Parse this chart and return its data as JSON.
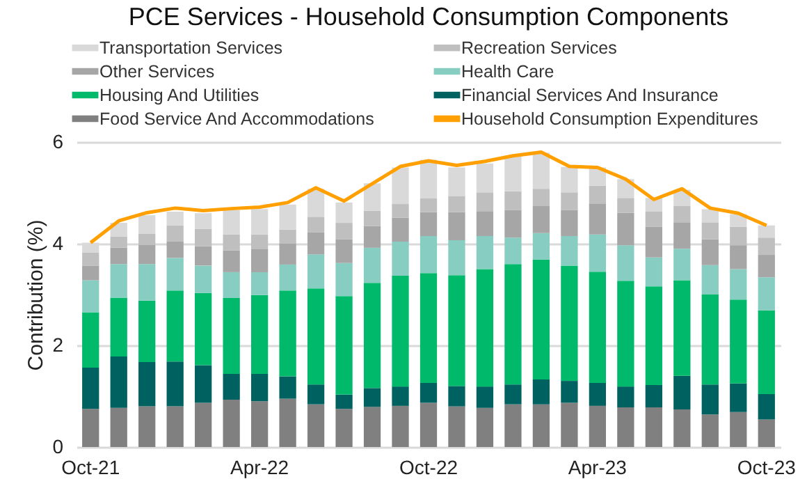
{
  "chart_data": {
    "type": "bar",
    "title": "PCE Services - Household Consumption Components",
    "ylabel": "Contribution (%)",
    "categories": [
      "Oct-21",
      null,
      null,
      null,
      null,
      null,
      "Apr-22",
      null,
      null,
      null,
      null,
      null,
      "Oct-22",
      null,
      null,
      null,
      null,
      null,
      "Apr-23",
      null,
      null,
      null,
      null,
      null,
      "Oct-23"
    ],
    "stacked": true,
    "ylim": [
      0,
      6
    ],
    "yticks": [
      0,
      2,
      4,
      6
    ],
    "grid": "y",
    "legend": "top",
    "series": [
      {
        "name": "Food Service And Accommodations",
        "color": "#808080",
        "values": [
          0.75,
          0.77,
          0.8,
          0.8,
          0.87,
          0.93,
          0.9,
          0.95,
          0.84,
          0.75,
          0.79,
          0.81,
          0.87,
          0.8,
          0.77,
          0.84,
          0.84,
          0.87,
          0.81,
          0.78,
          0.78,
          0.74,
          0.64,
          0.69,
          0.54
        ]
      },
      {
        "name": "Financial Services And Insurance",
        "color": "#006161",
        "values": [
          0.81,
          1.01,
          0.87,
          0.88,
          0.74,
          0.51,
          0.54,
          0.44,
          0.39,
          0.28,
          0.37,
          0.38,
          0.39,
          0.4,
          0.42,
          0.39,
          0.49,
          0.43,
          0.45,
          0.41,
          0.44,
          0.66,
          0.59,
          0.56,
          0.5
        ]
      },
      {
        "name": "Housing And Utilities",
        "color": "#00b96b",
        "values": [
          1.09,
          1.16,
          1.21,
          1.4,
          1.42,
          1.49,
          1.55,
          1.69,
          1.89,
          1.94,
          2.07,
          2.18,
          2.16,
          2.18,
          2.31,
          2.37,
          2.36,
          2.27,
          2.19,
          2.08,
          1.94,
          1.88,
          1.77,
          1.65,
          1.65
        ]
      },
      {
        "name": "Health Care",
        "color": "#88cdc1",
        "values": [
          0.63,
          0.66,
          0.72,
          0.64,
          0.54,
          0.51,
          0.45,
          0.51,
          0.67,
          0.65,
          0.69,
          0.67,
          0.73,
          0.69,
          0.65,
          0.52,
          0.52,
          0.58,
          0.73,
          0.7,
          0.57,
          0.62,
          0.58,
          0.6,
          0.65
        ]
      },
      {
        "name": "Other Services",
        "color": "#a6a6a6",
        "values": [
          0.29,
          0.32,
          0.38,
          0.33,
          0.38,
          0.43,
          0.46,
          0.41,
          0.43,
          0.47,
          0.43,
          0.47,
          0.47,
          0.55,
          0.49,
          0.54,
          0.53,
          0.51,
          0.61,
          0.64,
          0.6,
          0.52,
          0.51,
          0.47,
          0.44
        ]
      },
      {
        "name": "Recreation Services",
        "color": "#bfbfbf",
        "values": [
          0.26,
          0.22,
          0.22,
          0.31,
          0.34,
          0.31,
          0.28,
          0.28,
          0.31,
          0.32,
          0.3,
          0.27,
          0.27,
          0.32,
          0.37,
          0.37,
          0.34,
          0.35,
          0.35,
          0.29,
          0.3,
          0.32,
          0.33,
          0.36,
          0.34
        ]
      },
      {
        "name": "Transportation Services",
        "color": "#d9d9d9",
        "values": [
          0.19,
          0.27,
          0.36,
          0.27,
          0.31,
          0.48,
          0.5,
          0.49,
          0.55,
          0.4,
          0.54,
          0.72,
          0.76,
          0.56,
          0.57,
          0.7,
          0.71,
          0.5,
          0.36,
          0.37,
          0.27,
          0.32,
          0.26,
          0.25,
          0.24
        ]
      },
      {
        "name": "Household Consumption Expenditures",
        "type": "line",
        "color": "#ffa000",
        "values": [
          4.02,
          4.45,
          4.61,
          4.7,
          4.65,
          4.69,
          4.72,
          4.81,
          5.1,
          4.84,
          5.18,
          5.52,
          5.63,
          5.54,
          5.62,
          5.73,
          5.8,
          5.52,
          5.5,
          5.27,
          4.87,
          5.08,
          4.7,
          4.6,
          4.36
        ]
      }
    ]
  }
}
